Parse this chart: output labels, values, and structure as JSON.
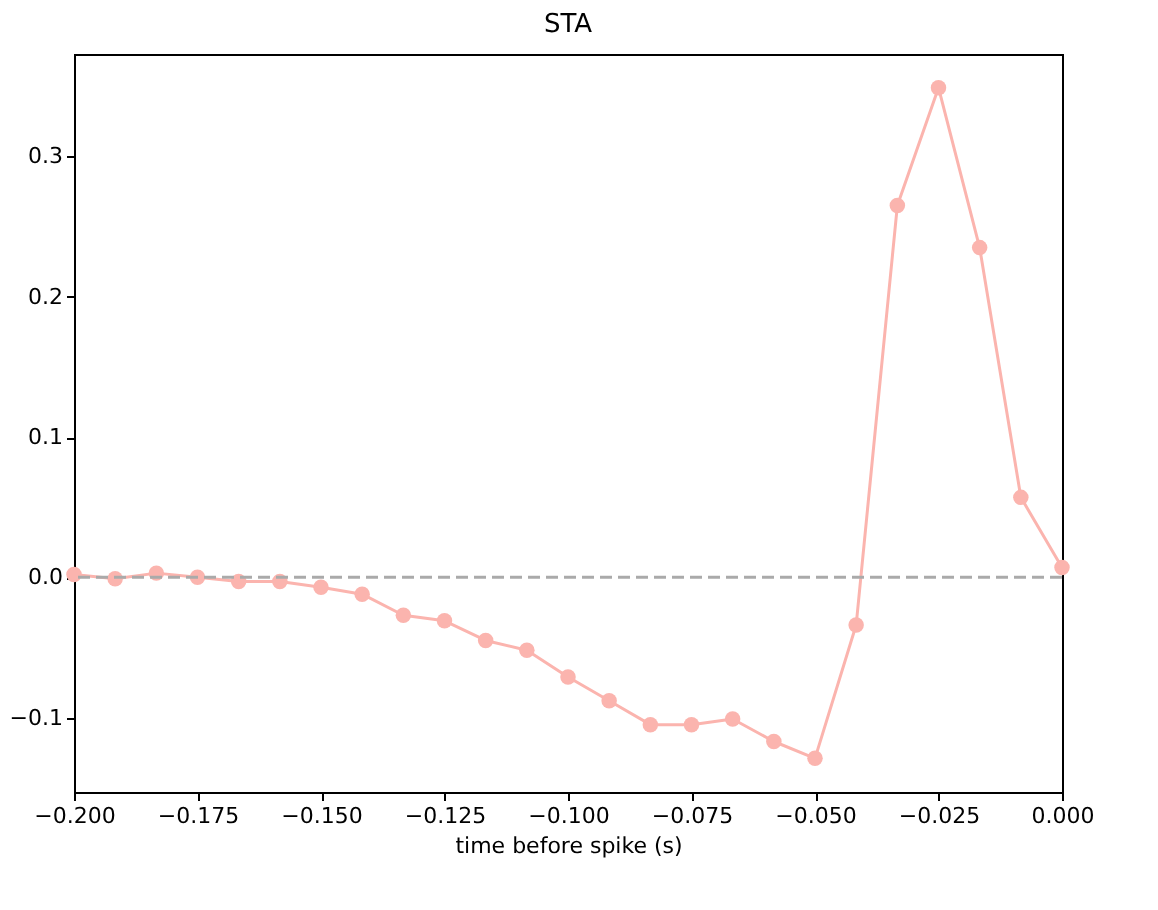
{
  "chart_data": {
    "type": "line",
    "title": "STA",
    "xlabel": "time before spike (s)",
    "x": [
      -0.2,
      -0.19167,
      -0.18333,
      -0.175,
      -0.16667,
      -0.15833,
      -0.15,
      -0.14167,
      -0.13333,
      -0.125,
      -0.11667,
      -0.10833,
      -0.1,
      -0.09167,
      -0.08333,
      -0.075,
      -0.06667,
      -0.05833,
      -0.05,
      -0.04167,
      -0.03333,
      -0.025,
      -0.01667,
      -0.00833,
      0
    ],
    "series": [
      {
        "color": "#fbb4ae",
        "values": [
          0.002,
          -0.001,
          0.003,
          0.0,
          -0.003,
          -0.003,
          -0.007,
          -0.012,
          -0.027,
          -0.031,
          -0.045,
          -0.052,
          -0.071,
          -0.088,
          -0.105,
          -0.105,
          -0.101,
          -0.117,
          -0.129,
          -0.034,
          0.265,
          0.349,
          0.235,
          0.057,
          0.007
        ]
      }
    ],
    "marker": "circle",
    "line_style": "solid",
    "xlim": [
      -0.2,
      0
    ],
    "xticks": [
      {
        "value": -0.2,
        "label": "−0.200"
      },
      {
        "value": -0.175,
        "label": "−0.175"
      },
      {
        "value": -0.15,
        "label": "−0.150"
      },
      {
        "value": -0.125,
        "label": "−0.125"
      },
      {
        "value": -0.1,
        "label": "−0.100"
      },
      {
        "value": -0.075,
        "label": "−0.075"
      },
      {
        "value": -0.05,
        "label": "−0.050"
      },
      {
        "value": -0.025,
        "label": "−0.025"
      },
      {
        "value": 0,
        "label": "0.000"
      }
    ],
    "ylim": [
      -0.153,
      0.373
    ],
    "yticks": [
      {
        "value": -0.1,
        "label": "−0.1"
      },
      {
        "value": 0,
        "label": "0.0"
      },
      {
        "value": 0.1,
        "label": "0.1"
      },
      {
        "value": 0.2,
        "label": "0.2"
      },
      {
        "value": 0.3,
        "label": "0.3"
      }
    ],
    "ref_lines": [
      {
        "axis": "y",
        "value": 0,
        "color": "#aaaaaa",
        "line_style": "dashed"
      }
    ]
  }
}
